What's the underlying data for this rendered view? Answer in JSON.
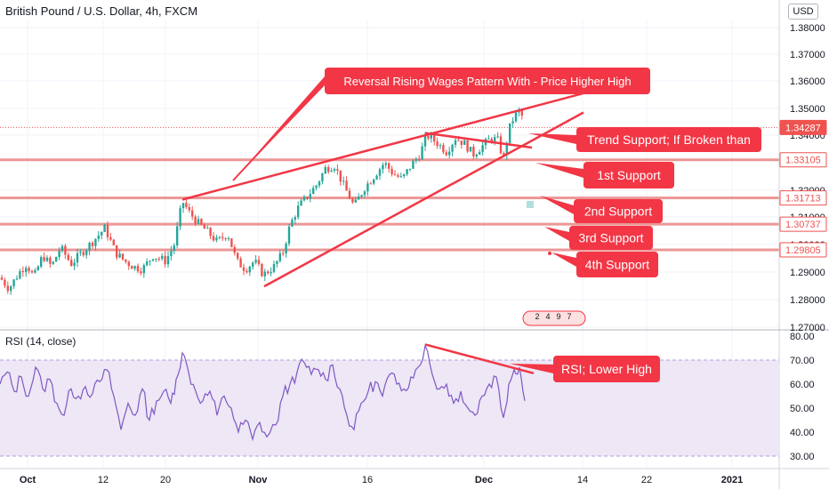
{
  "header": {
    "title": "British Pound / U.S. Dollar, 4h, FXCM",
    "currency_badge": "USD"
  },
  "rsi_panel": {
    "title": "RSI (14, close)"
  },
  "colors": {
    "bull": "#26a69a",
    "bear": "#ef5350",
    "annotation": "#f23645",
    "annotation_text": "#ffffff",
    "support_line": "#e57373",
    "rsi_line": "#7e57c2",
    "rsi_band": "#ede7f6",
    "price_tag": "#ef5350",
    "grid": "#f0f3fa"
  },
  "chart_data": [
    {
      "type": "candlestick",
      "title": "British Pound / U.S. Dollar, 4h, FXCM",
      "y_ticks": [
        "1.38000",
        "1.37000",
        "1.36000",
        "1.35000",
        "1.34000",
        "1.32000",
        "1.31000",
        "1.30000",
        "1.29000",
        "1.28000",
        "1.27000"
      ],
      "x_ticks": [
        "Oct",
        "12",
        "20",
        "Nov",
        "16",
        "Dec",
        "14",
        "22",
        "2021"
      ],
      "ylim": [
        1.27,
        1.385
      ],
      "close_path": [
        [
          0,
          1.288
        ],
        [
          10,
          1.284
        ],
        [
          22,
          1.29
        ],
        [
          30,
          1.293
        ],
        [
          38,
          1.288
        ],
        [
          48,
          1.296
        ],
        [
          58,
          1.292
        ],
        [
          68,
          1.299
        ],
        [
          80,
          1.293
        ],
        [
          92,
          1.297
        ],
        [
          104,
          1.301
        ],
        [
          118,
          1.306
        ],
        [
          130,
          1.297
        ],
        [
          140,
          1.294
        ],
        [
          150,
          1.292
        ],
        [
          160,
          1.291
        ],
        [
          172,
          1.296
        ],
        [
          186,
          1.294
        ],
        [
          196,
          1.3
        ],
        [
          205,
          1.316
        ],
        [
          212,
          1.312
        ],
        [
          222,
          1.308
        ],
        [
          232,
          1.305
        ],
        [
          244,
          1.301
        ],
        [
          256,
          1.304
        ],
        [
          266,
          1.294
        ],
        [
          276,
          1.291
        ],
        [
          286,
          1.294
        ],
        [
          296,
          1.289
        ],
        [
          308,
          1.292
        ],
        [
          318,
          1.297
        ],
        [
          326,
          1.307
        ],
        [
          336,
          1.314
        ],
        [
          346,
          1.318
        ],
        [
          356,
          1.322
        ],
        [
          366,
          1.328
        ],
        [
          376,
          1.329
        ],
        [
          386,
          1.322
        ],
        [
          398,
          1.314
        ],
        [
          410,
          1.321
        ],
        [
          420,
          1.325
        ],
        [
          432,
          1.33
        ],
        [
          442,
          1.326
        ],
        [
          452,
          1.324
        ],
        [
          462,
          1.329
        ],
        [
          472,
          1.333
        ],
        [
          480,
          1.34
        ],
        [
          492,
          1.337
        ],
        [
          502,
          1.334
        ],
        [
          512,
          1.339
        ],
        [
          522,
          1.337
        ],
        [
          532,
          1.333
        ],
        [
          542,
          1.336
        ],
        [
          552,
          1.339
        ],
        [
          560,
          1.338
        ],
        [
          566,
          1.331
        ],
        [
          572,
          1.342
        ],
        [
          578,
          1.347
        ],
        [
          584,
          1.349
        ],
        [
          590,
          1.345
        ]
      ],
      "price_labels": [
        {
          "value": "1.34287",
          "y": 1.34287,
          "filled": true
        },
        {
          "value": "1.33105",
          "y": 1.33105,
          "filled": false
        },
        {
          "value": "1.31713",
          "y": 1.31713,
          "filled": false
        },
        {
          "value": "1.30737",
          "y": 1.30737,
          "filled": false
        },
        {
          "value": "1.29805",
          "y": 1.29805,
          "filled": false
        }
      ],
      "support_levels": [
        1.33105,
        1.31713,
        1.30737,
        1.29805
      ],
      "trendlines": [
        {
          "name": "upper",
          "from": [
            205,
            1.3165
          ],
          "to": [
            656,
            1.3555
          ]
        },
        {
          "name": "lower",
          "from": [
            297,
            1.2848
          ],
          "to": [
            656,
            1.3485
          ]
        },
        {
          "name": "recent",
          "from": [
            478,
            1.3408
          ],
          "to": [
            598,
            1.3355
          ]
        }
      ],
      "annotations": [
        {
          "text": "Reversal Rising Wages Pattern With - Price Higher High"
        },
        {
          "text": "Trend Support; If Broken than"
        },
        {
          "text": "1st Support"
        },
        {
          "text": "2nd Support"
        },
        {
          "text": "3rd Support"
        },
        {
          "text": "4th Support"
        }
      ],
      "event_badge": [
        "2",
        "4",
        "9",
        "7"
      ]
    },
    {
      "type": "line",
      "title": "RSI (14, close)",
      "ylim": [
        25,
        82
      ],
      "y_ticks": [
        "80.00",
        "70.00",
        "60.00",
        "50.00",
        "40.00",
        "30.00"
      ],
      "band": [
        30,
        70
      ],
      "series": [
        {
          "values": [
            [
              0,
              60
            ],
            [
              8,
              65
            ],
            [
              16,
              57
            ],
            [
              24,
              63
            ],
            [
              32,
              55
            ],
            [
              40,
              67
            ],
            [
              48,
              58
            ],
            [
              56,
              62
            ],
            [
              64,
              52
            ],
            [
              72,
              47
            ],
            [
              80,
              58
            ],
            [
              88,
              55
            ],
            [
              96,
              59
            ],
            [
              104,
              56
            ],
            [
              112,
              61
            ],
            [
              120,
              66
            ],
            [
              128,
              55
            ],
            [
              136,
              41
            ],
            [
              144,
              52
            ],
            [
              152,
              47
            ],
            [
              160,
              58
            ],
            [
              168,
              45
            ],
            [
              176,
              53
            ],
            [
              184,
              57
            ],
            [
              192,
              52
            ],
            [
              198,
              62
            ],
            [
              205,
              73
            ],
            [
              212,
              65
            ],
            [
              220,
              57
            ],
            [
              228,
              53
            ],
            [
              236,
              57
            ],
            [
              244,
              47
            ],
            [
              252,
              55
            ],
            [
              260,
              50
            ],
            [
              268,
              40
            ],
            [
              276,
              45
            ],
            [
              284,
              37
            ],
            [
              292,
              44
            ],
            [
              300,
              38
            ],
            [
              310,
              43
            ],
            [
              318,
              55
            ],
            [
              326,
              60
            ],
            [
              334,
              65
            ],
            [
              342,
              69
            ],
            [
              350,
              64
            ],
            [
              358,
              66
            ],
            [
              366,
              62
            ],
            [
              374,
              68
            ],
            [
              382,
              58
            ],
            [
              390,
              47
            ],
            [
              398,
              41
            ],
            [
              406,
              52
            ],
            [
              414,
              57
            ],
            [
              422,
              61
            ],
            [
              430,
              55
            ],
            [
              438,
              64
            ],
            [
              446,
              60
            ],
            [
              454,
              58
            ],
            [
              462,
              63
            ],
            [
              470,
              67
            ],
            [
              478,
              76
            ],
            [
              486,
              64
            ],
            [
              494,
              58
            ],
            [
              502,
              60
            ],
            [
              510,
              52
            ],
            [
              518,
              57
            ],
            [
              526,
              50
            ],
            [
              534,
              47
            ],
            [
              542,
              55
            ],
            [
              550,
              60
            ],
            [
              558,
              63
            ],
            [
              566,
              46
            ],
            [
              572,
              60
            ],
            [
              578,
              66
            ],
            [
              584,
              67
            ],
            [
              590,
              53
            ]
          ]
        }
      ],
      "annotations": [
        {
          "text": "RSI; Lower High"
        }
      ],
      "trendline": {
        "from": [
          478,
          76.5
        ],
        "to": [
          600,
          64.5
        ]
      }
    }
  ]
}
